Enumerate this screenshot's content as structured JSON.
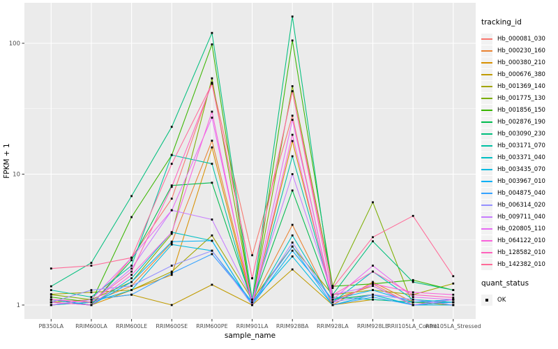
{
  "figure": {
    "panel_bg": "#EBEBEB",
    "grid_color": "#FFFFFF",
    "tick_color": "#333333",
    "tick_text_color": "#4D4D4D",
    "title_text_color": "#000000",
    "legend_key_bg": "#F2F2F2",
    "point_color": "#000000",
    "y_axis": {
      "label": "FPKM + 1",
      "tick_labels": [
        "100",
        "10",
        "1"
      ],
      "tick_values": [
        100,
        10,
        1
      ]
    },
    "x_axis": {
      "label": "sample_name"
    },
    "legend": {
      "tracking_title": "tracking_id",
      "quant_title": "quant_status",
      "quant_items": [
        {
          "label": "OK",
          "marker": "black-square"
        }
      ]
    }
  },
  "chart_data": {
    "type": "line",
    "title": "",
    "xlabel": "sample_name",
    "ylabel": "FPKM + 1",
    "yscale": "log10",
    "ylim": [
      1,
      170
    ],
    "grid": true,
    "legend_position": "right",
    "marker": "black-square",
    "marker_meaning": "quant_status OK",
    "categories": [
      "PB350LA",
      "RRIM600LA",
      "RRIM600LE",
      "RRIM600SE",
      "RRIM600PE",
      "RRIM901LA",
      "RRIM928BA",
      "RRIM928LA",
      "RRIM928LE",
      "RRII105LA_Control",
      "RRII105LA_Stressed"
    ],
    "series": [
      {
        "name": "Hb_000081_030",
        "color": "#F8766D",
        "values": [
          1.05,
          1.0,
          2.3,
          6.5,
          50.0,
          2.4,
          28.0,
          1.05,
          1.45,
          1.0,
          1.05
        ]
      },
      {
        "name": "Hb_000230_160",
        "color": "#EA8331",
        "values": [
          1.0,
          1.05,
          1.4,
          3.0,
          18.0,
          1.05,
          4.1,
          1.0,
          1.5,
          1.05,
          1.1
        ]
      },
      {
        "name": "Hb_000380_210",
        "color": "#D89000",
        "values": [
          1.1,
          1.0,
          1.3,
          1.7,
          16.0,
          1.0,
          17.9,
          1.1,
          1.4,
          1.0,
          1.05
        ]
      },
      {
        "name": "Hb_000676_380",
        "color": "#C09B00",
        "values": [
          1.05,
          1.1,
          1.2,
          1.0,
          1.43,
          1.0,
          1.87,
          1.0,
          1.1,
          1.05,
          1.0
        ]
      },
      {
        "name": "Hb_001369_140",
        "color": "#A3A500",
        "values": [
          1.21,
          1.25,
          1.3,
          1.8,
          3.4,
          1.1,
          2.8,
          1.2,
          1.3,
          1.2,
          1.46
        ]
      },
      {
        "name": "Hb_001775_130",
        "color": "#7CAE00",
        "values": [
          1.2,
          1.1,
          1.5,
          3.5,
          54.0,
          1.05,
          47.0,
          1.4,
          6.1,
          1.0,
          1.05
        ]
      },
      {
        "name": "Hb_001856_150",
        "color": "#39B600",
        "values": [
          1.15,
          1.05,
          4.7,
          14.0,
          98.0,
          1.0,
          105.0,
          1.39,
          1.45,
          1.55,
          1.3
        ]
      },
      {
        "name": "Hb_002876_190",
        "color": "#00BB4E",
        "values": [
          1.1,
          1.0,
          2.2,
          8.2,
          8.6,
          1.05,
          7.5,
          1.1,
          1.2,
          1.0,
          1.1
        ]
      },
      {
        "name": "Hb_003090_230",
        "color": "#00BF7D",
        "values": [
          1.39,
          2.1,
          6.8,
          23.0,
          120.0,
          1.1,
          160.0,
          1.2,
          3.07,
          1.5,
          1.3
        ]
      },
      {
        "name": "Hb_003171_070",
        "color": "#00C1A3",
        "values": [
          1.3,
          1.15,
          2.0,
          14.0,
          12.0,
          1.0,
          13.7,
          1.15,
          1.1,
          1.05,
          1.05
        ]
      },
      {
        "name": "Hb_003371_040",
        "color": "#00BFC4",
        "values": [
          1.05,
          1.0,
          1.6,
          3.6,
          3.1,
          1.0,
          3.4,
          1.05,
          1.8,
          1.1,
          1.05
        ]
      },
      {
        "name": "Hb_003435_070",
        "color": "#00BAE0",
        "values": [
          1.0,
          1.05,
          1.3,
          2.9,
          2.6,
          1.05,
          2.35,
          1.0,
          1.2,
          1.0,
          1.0
        ]
      },
      {
        "name": "Hb_003967_010",
        "color": "#00B0F6",
        "values": [
          1.1,
          1.0,
          1.5,
          3.05,
          3.1,
          1.0,
          2.6,
          1.1,
          1.3,
          1.05,
          1.1
        ]
      },
      {
        "name": "Hb_004875_040",
        "color": "#35A2FF",
        "values": [
          1.0,
          1.1,
          1.2,
          1.75,
          2.45,
          1.05,
          2.8,
          1.0,
          1.15,
          1.0,
          1.05
        ]
      },
      {
        "name": "Hb_006314_020",
        "color": "#9590FF",
        "values": [
          1.05,
          1.3,
          1.4,
          2.0,
          2.6,
          1.0,
          3.0,
          1.05,
          1.2,
          1.1,
          1.0
        ]
      },
      {
        "name": "Hb_009711_040",
        "color": "#C77CFF",
        "values": [
          1.1,
          1.05,
          1.9,
          5.3,
          4.5,
          1.1,
          10.0,
          1.2,
          1.4,
          1.0,
          1.1
        ]
      },
      {
        "name": "Hb_020805_110",
        "color": "#E76BF3",
        "values": [
          1.0,
          1.1,
          2.3,
          5.3,
          27.0,
          1.05,
          26.0,
          1.1,
          2.0,
          1.15,
          1.1
        ]
      },
      {
        "name": "Hb_064122_010",
        "color": "#FA62DB",
        "values": [
          1.05,
          1.0,
          1.7,
          3.6,
          30.0,
          1.0,
          20.0,
          1.05,
          1.45,
          1.25,
          1.2
        ]
      },
      {
        "name": "Hb_128582_010",
        "color": "#FF62BC",
        "values": [
          1.1,
          1.05,
          1.8,
          8.0,
          49.0,
          1.6,
          43.0,
          1.19,
          1.8,
          1.2,
          1.14
        ]
      },
      {
        "name": "Hb_142382_010",
        "color": "#FF6A98",
        "values": [
          1.9,
          2.0,
          2.3,
          12.0,
          49.0,
          1.6,
          43.0,
          1.35,
          3.3,
          4.8,
          1.66
        ]
      }
    ]
  }
}
